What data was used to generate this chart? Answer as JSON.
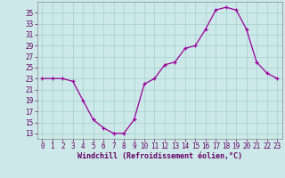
{
  "hours": [
    0,
    1,
    2,
    3,
    4,
    5,
    6,
    7,
    8,
    9,
    10,
    11,
    12,
    13,
    14,
    15,
    16,
    17,
    18,
    19,
    20,
    21,
    22,
    23
  ],
  "values": [
    23,
    23,
    23,
    22.5,
    19,
    15.5,
    14,
    13,
    13,
    15.5,
    22,
    23,
    25.5,
    26,
    28.5,
    29,
    32,
    35.5,
    36,
    35.5,
    32,
    26,
    24,
    23
  ],
  "line_color": "#990099",
  "marker": "+",
  "bg_color": "#cce8e8",
  "grid_color": "#aad4d4",
  "xlabel": "Windchill (Refroidissement éolien,°C)",
  "ylabel_ticks": [
    13,
    15,
    17,
    19,
    21,
    23,
    25,
    27,
    29,
    31,
    33,
    35
  ],
  "ylim": [
    12,
    37
  ],
  "xlim": [
    -0.5,
    23.5
  ],
  "xtick_labels": [
    "0",
    "1",
    "2",
    "3",
    "4",
    "5",
    "6",
    "7",
    "8",
    "9",
    "10",
    "11",
    "12",
    "13",
    "14",
    "15",
    "16",
    "17",
    "18",
    "19",
    "20",
    "21",
    "22",
    "23"
  ],
  "tick_fontsize": 5.5,
  "xlabel_fontsize": 6.0,
  "markersize": 3.5,
  "linewidth": 0.9
}
